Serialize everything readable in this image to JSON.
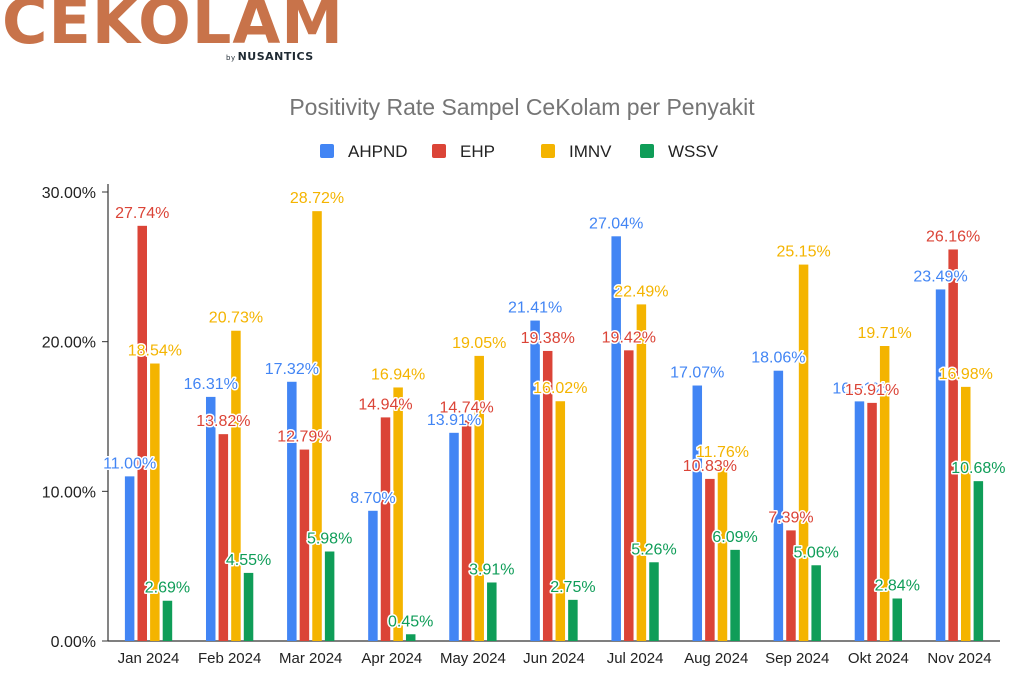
{
  "logo": {
    "text": "CEKOLAM",
    "by": "by",
    "brand": "NUSANTICS"
  },
  "chart_data": {
    "type": "bar",
    "title": "Positivity Rate Sampel CeKolam per Penyakit",
    "xlabel": "",
    "ylabel": "",
    "ylim": [
      0,
      30
    ],
    "yticks": [
      "0.00%",
      "10.00%",
      "20.00%",
      "30.00%"
    ],
    "legend_position": "top",
    "categories": [
      "Jan 2024",
      "Feb 2024",
      "Mar 2024",
      "Apr 2024",
      "May 2024",
      "Jun 2024",
      "Jul 2024",
      "Aug 2024",
      "Sep 2024",
      "Okt 2024",
      "Nov 2024"
    ],
    "series": [
      {
        "name": "AHPND",
        "color": "#4285f4",
        "values": [
          11.0,
          16.31,
          17.32,
          8.7,
          13.91,
          21.41,
          27.04,
          17.07,
          18.06,
          16.01,
          23.49
        ],
        "labels": [
          "11.00%",
          "16.31%",
          "17.32%",
          "8.70%",
          "13.91%",
          "21.41%",
          "27.04%",
          "17.07%",
          "18.06%",
          "16.01%",
          "23.49%"
        ]
      },
      {
        "name": "EHP",
        "color": "#db4437",
        "values": [
          27.74,
          13.82,
          12.79,
          14.94,
          14.74,
          19.38,
          19.42,
          10.83,
          7.39,
          15.91,
          26.16
        ],
        "labels": [
          "27.74%",
          "13.82%",
          "12.79%",
          "14.94%",
          "14.74%",
          "19.38%",
          "19.42%",
          "10.83%",
          "7.39%",
          "15.91%",
          "26.16%"
        ]
      },
      {
        "name": "IMNV",
        "color": "#f4b400",
        "values": [
          18.54,
          20.73,
          28.72,
          16.94,
          19.05,
          16.02,
          22.49,
          11.76,
          25.15,
          19.71,
          16.98
        ],
        "labels": [
          "18.54%",
          "20.73%",
          "28.72%",
          "16.94%",
          "19.05%",
          "16.02%",
          "22.49%",
          "11.76%",
          "25.15%",
          "19.71%",
          "16.98%"
        ]
      },
      {
        "name": "WSSV",
        "color": "#0f9d58",
        "values": [
          2.69,
          4.55,
          5.98,
          0.45,
          3.91,
          2.75,
          5.26,
          6.09,
          5.06,
          2.84,
          10.68
        ],
        "labels": [
          "2.69%",
          "4.55%",
          "5.98%",
          "0.45%",
          "3.91%",
          "2.75%",
          "5.26%",
          "6.09%",
          "5.06%",
          "2.84%",
          "10.68%"
        ]
      }
    ]
  }
}
